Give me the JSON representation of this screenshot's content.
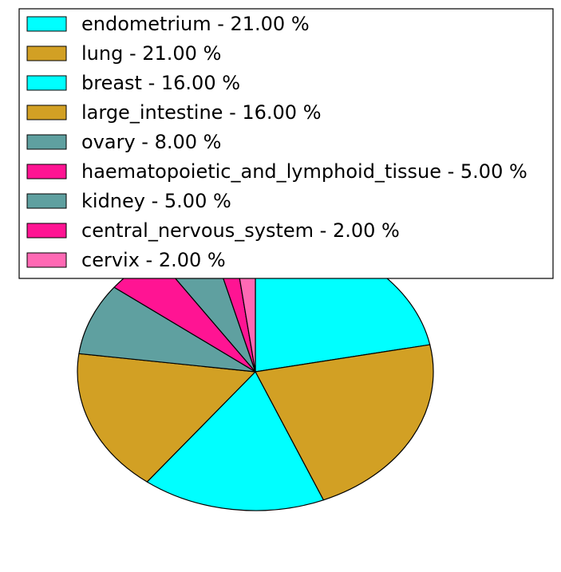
{
  "chart_data": {
    "type": "pie",
    "title": "",
    "legend_position": "top",
    "start_angle_deg": 90,
    "direction": "clockwise",
    "slices": [
      {
        "label": "endometrium - 21.00 %",
        "value": 21.0,
        "color": "#00FFFF"
      },
      {
        "label": "lung - 21.00 %",
        "value": 21.0,
        "color": "#D2A024"
      },
      {
        "label": "breast - 16.00 %",
        "value": 16.0,
        "color": "#00FFFF"
      },
      {
        "label": "large_intestine - 16.00 %",
        "value": 16.0,
        "color": "#D2A024"
      },
      {
        "label": "ovary - 8.00 %",
        "value": 8.0,
        "color": "#5FA0A0"
      },
      {
        "label": "haematopoietic_and_lymphoid_tissue - 5.00 %",
        "value": 5.0,
        "color": "#FF1493"
      },
      {
        "label": "kidney - 5.00 %",
        "value": 5.0,
        "color": "#5FA0A0"
      },
      {
        "label": "central_nervous_system - 2.00 %",
        "value": 2.0,
        "color": "#FF1493"
      },
      {
        "label": "cervix - 2.00 %",
        "value": 2.0,
        "color": "#FF69B4"
      }
    ]
  }
}
